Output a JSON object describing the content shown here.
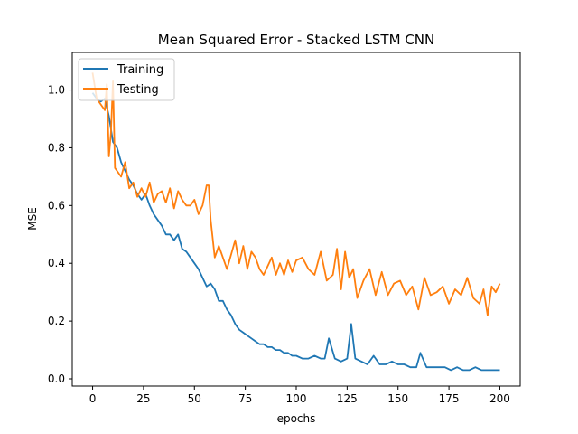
{
  "chart_data": {
    "type": "line",
    "title": "Mean Squared Error - Stacked LSTM CNN",
    "xlabel": "epochs",
    "ylabel": "MSE",
    "xlim": [
      -10,
      210
    ],
    "ylim": [
      -0.025,
      1.13
    ],
    "xticks": [
      0,
      25,
      50,
      75,
      100,
      125,
      150,
      175,
      200
    ],
    "yticks": [
      0.0,
      0.2,
      0.4,
      0.6,
      0.8,
      1.0
    ],
    "ytick_labels": [
      "0.0",
      "0.2",
      "0.4",
      "0.6",
      "0.8",
      "1.0"
    ],
    "grid": false,
    "legend_position": "top-left",
    "series": [
      {
        "name": "Training",
        "color": "#1f77b4",
        "x": [
          0,
          2,
          4,
          6,
          8,
          10,
          12,
          14,
          16,
          18,
          20,
          22,
          24,
          26,
          28,
          30,
          32,
          34,
          36,
          38,
          40,
          42,
          44,
          46,
          48,
          50,
          52,
          54,
          56,
          58,
          60,
          62,
          64,
          66,
          68,
          70,
          72,
          74,
          76,
          78,
          80,
          82,
          84,
          86,
          88,
          90,
          92,
          94,
          96,
          98,
          100,
          103,
          106,
          109,
          112,
          114,
          116,
          119,
          122,
          125,
          127,
          129,
          132,
          135,
          138,
          141,
          144,
          147,
          150,
          153,
          156,
          159,
          161,
          164,
          167,
          170,
          173,
          176,
          179,
          182,
          185,
          188,
          191,
          194,
          197,
          200
        ],
        "y": [
          0.99,
          0.97,
          0.96,
          0.97,
          0.91,
          0.82,
          0.8,
          0.75,
          0.72,
          0.69,
          0.67,
          0.64,
          0.62,
          0.64,
          0.6,
          0.57,
          0.55,
          0.53,
          0.5,
          0.5,
          0.48,
          0.5,
          0.45,
          0.44,
          0.42,
          0.4,
          0.38,
          0.35,
          0.32,
          0.33,
          0.31,
          0.27,
          0.27,
          0.24,
          0.22,
          0.19,
          0.17,
          0.16,
          0.15,
          0.14,
          0.13,
          0.12,
          0.12,
          0.11,
          0.11,
          0.1,
          0.1,
          0.09,
          0.09,
          0.08,
          0.08,
          0.07,
          0.07,
          0.08,
          0.07,
          0.07,
          0.14,
          0.07,
          0.06,
          0.07,
          0.19,
          0.07,
          0.06,
          0.05,
          0.08,
          0.05,
          0.05,
          0.06,
          0.05,
          0.05,
          0.04,
          0.04,
          0.09,
          0.04,
          0.04,
          0.04,
          0.04,
          0.03,
          0.04,
          0.03,
          0.03,
          0.04,
          0.03,
          0.03,
          0.03,
          0.03
        ]
      },
      {
        "name": "Testing",
        "color": "#ff7f0e",
        "x": [
          0,
          2,
          4,
          6,
          7,
          8,
          9,
          10,
          11,
          12,
          14,
          16,
          18,
          20,
          22,
          24,
          26,
          28,
          30,
          32,
          34,
          36,
          38,
          40,
          42,
          44,
          46,
          48,
          50,
          52,
          54,
          56,
          57,
          58,
          60,
          62,
          64,
          66,
          68,
          70,
          72,
          74,
          76,
          78,
          80,
          82,
          84,
          86,
          88,
          90,
          92,
          94,
          96,
          98,
          100,
          103,
          106,
          109,
          112,
          115,
          118,
          120,
          122,
          124,
          126,
          128,
          130,
          133,
          136,
          139,
          142,
          145,
          148,
          151,
          154,
          157,
          160,
          163,
          166,
          169,
          172,
          175,
          178,
          181,
          184,
          187,
          190,
          192,
          194,
          196,
          198,
          200
        ],
        "y": [
          1.06,
          0.97,
          0.95,
          0.93,
          1.02,
          0.77,
          0.85,
          1.03,
          0.73,
          0.72,
          0.7,
          0.75,
          0.66,
          0.68,
          0.63,
          0.66,
          0.63,
          0.68,
          0.61,
          0.64,
          0.65,
          0.61,
          0.66,
          0.59,
          0.65,
          0.62,
          0.6,
          0.6,
          0.62,
          0.57,
          0.6,
          0.67,
          0.67,
          0.55,
          0.42,
          0.46,
          0.42,
          0.38,
          0.43,
          0.48,
          0.4,
          0.46,
          0.38,
          0.44,
          0.42,
          0.38,
          0.36,
          0.39,
          0.42,
          0.36,
          0.4,
          0.36,
          0.41,
          0.37,
          0.41,
          0.42,
          0.38,
          0.36,
          0.44,
          0.34,
          0.36,
          0.45,
          0.31,
          0.44,
          0.35,
          0.38,
          0.28,
          0.34,
          0.38,
          0.29,
          0.37,
          0.29,
          0.33,
          0.34,
          0.29,
          0.32,
          0.24,
          0.35,
          0.29,
          0.3,
          0.32,
          0.26,
          0.31,
          0.29,
          0.35,
          0.28,
          0.26,
          0.31,
          0.22,
          0.32,
          0.3,
          0.33
        ]
      }
    ]
  }
}
